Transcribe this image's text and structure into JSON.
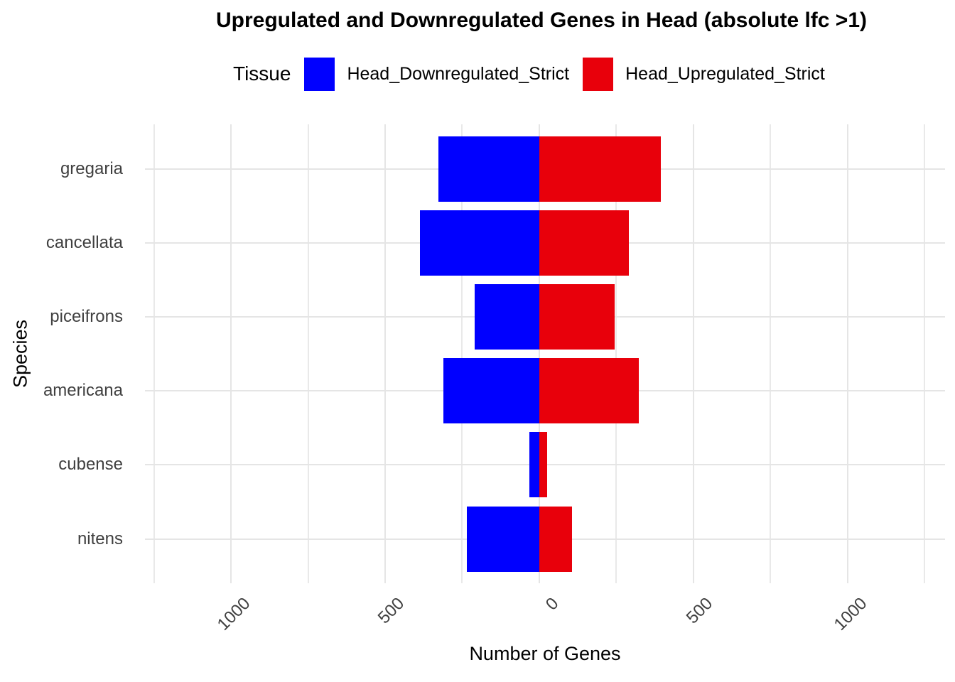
{
  "chart_data": {
    "type": "bar",
    "orientation": "horizontal_diverging",
    "title": "Upregulated and Downregulated Genes in Head (absolute lfc >1)",
    "xlabel": "Number of Genes",
    "ylabel": "Species",
    "legend_title": "Tissue",
    "legend_position": "top",
    "grid": true,
    "categories": [
      "gregaria",
      "cancellata",
      "piceifrons",
      "americana",
      "cubense",
      "nitens"
    ],
    "series": [
      {
        "name": "Head_Downregulated_Strict",
        "color": "#0000ff",
        "side": "negative",
        "values": [
          328,
          386,
          209,
          312,
          32,
          234
        ]
      },
      {
        "name": "Head_Upregulated_Strict",
        "color": "#e8000b",
        "side": "positive",
        "values": [
          395,
          290,
          244,
          322,
          25,
          105
        ]
      }
    ],
    "x_ticks": [
      {
        "value": -1000,
        "label": "1000"
      },
      {
        "value": -500,
        "label": "500"
      },
      {
        "value": 0,
        "label": "0"
      },
      {
        "value": 500,
        "label": "500"
      },
      {
        "value": 1000,
        "label": "1000"
      }
    ],
    "x_minor_step": 250,
    "xlim": [
      -1279,
      1316
    ],
    "x_tick_rotation_deg": 45
  },
  "style": {
    "axis_text_color": "#404040",
    "grid_color": "#e5e5e5",
    "background": "#ffffff"
  }
}
